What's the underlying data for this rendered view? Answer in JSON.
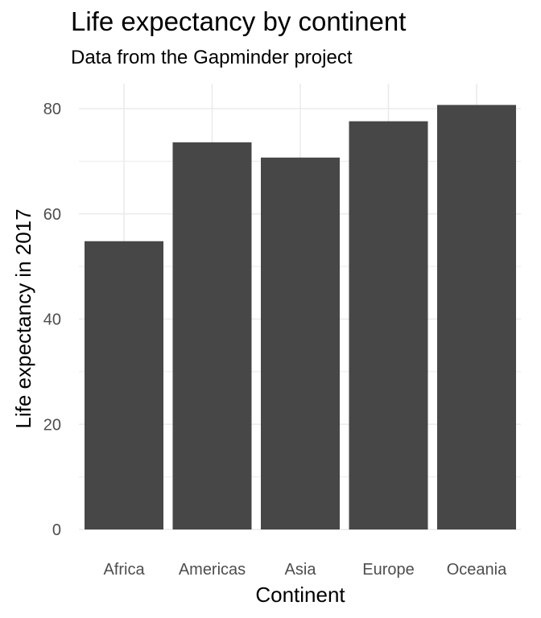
{
  "chart_data": {
    "type": "bar",
    "title": "Life expectancy by continent",
    "subtitle": "Data from the Gapminder project",
    "xlabel": "Continent",
    "ylabel": "Life expectancy in 2017",
    "categories": [
      "Africa",
      "Americas",
      "Asia",
      "Europe",
      "Oceania"
    ],
    "values": [
      54.8,
      73.6,
      70.7,
      77.6,
      80.7
    ],
    "ylim": [
      0,
      80.7
    ],
    "yticks": [
      0,
      20,
      40,
      60,
      80
    ],
    "grid": true,
    "legend": "none",
    "colors": {
      "bar": "#474747",
      "grid": "#ebebeb",
      "background": "#ffffff"
    }
  }
}
